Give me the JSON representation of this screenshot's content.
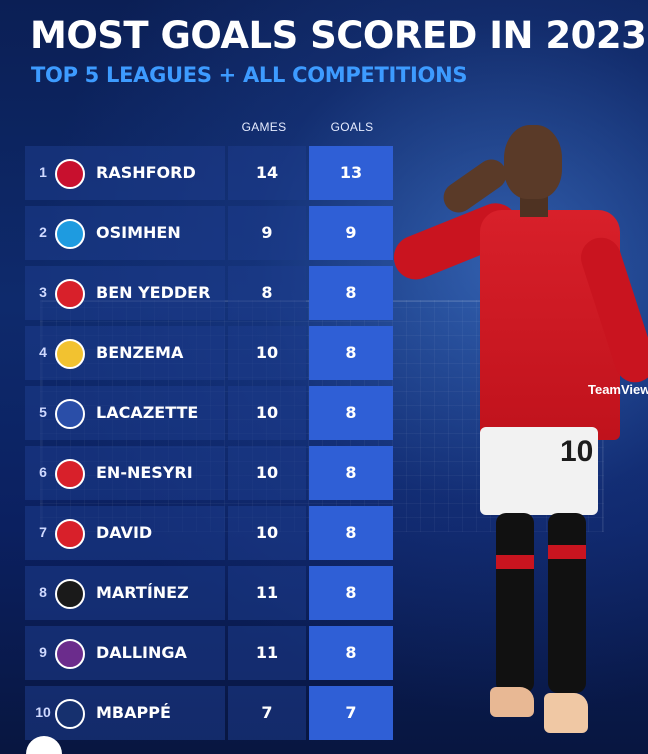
{
  "header": {
    "title": "MOST GOALS SCORED IN 2023",
    "subtitle": "TOP 5 LEAGUES + ALL COMPETITIONS"
  },
  "columns": {
    "games": "GAMES",
    "goals": "GOALS"
  },
  "rows": [
    {
      "rank": "1",
      "player": "RASHFORD",
      "games": "14",
      "goals": "13",
      "crest_color": "#c8102e",
      "crest_icon": "manchester-united-crest"
    },
    {
      "rank": "2",
      "player": "OSIMHEN",
      "games": "9",
      "goals": "9",
      "crest_color": "#1e9be0",
      "crest_icon": "napoli-crest"
    },
    {
      "rank": "3",
      "player": "BEN YEDDER",
      "games": "8",
      "goals": "8",
      "crest_color": "#d8202a",
      "crest_icon": "monaco-crest"
    },
    {
      "rank": "4",
      "player": "BENZEMA",
      "games": "10",
      "goals": "8",
      "crest_color": "#f2c230",
      "crest_icon": "real-madrid-crest"
    },
    {
      "rank": "5",
      "player": "LACAZETTE",
      "games": "10",
      "goals": "8",
      "crest_color": "#2a4ea8",
      "crest_icon": "lyon-crest"
    },
    {
      "rank": "6",
      "player": "EN-NESYRI",
      "games": "10",
      "goals": "8",
      "crest_color": "#d8202a",
      "crest_icon": "sevilla-crest"
    },
    {
      "rank": "7",
      "player": "DAVID",
      "games": "10",
      "goals": "8",
      "crest_color": "#d8202a",
      "crest_icon": "lille-crest"
    },
    {
      "rank": "8",
      "player": "MARTÍNEZ",
      "games": "11",
      "goals": "8",
      "crest_color": "#1a1a1a",
      "crest_icon": "inter-crest"
    },
    {
      "rank": "9",
      "player": "DALLINGA",
      "games": "11",
      "goals": "8",
      "crest_color": "#6b2c8c",
      "crest_icon": "toulouse-crest"
    },
    {
      "rank": "10",
      "player": "MBAPPÉ",
      "games": "7",
      "goals": "7",
      "crest_color": "#16306e",
      "crest_icon": "psg-crest"
    }
  ],
  "photo": {
    "sponsor_text": "TeamViewer",
    "shorts_number": "10"
  },
  "colors": {
    "accent": "#3d9bff",
    "goals_cell": "#2f5fd6",
    "background": "#0b1f55"
  }
}
